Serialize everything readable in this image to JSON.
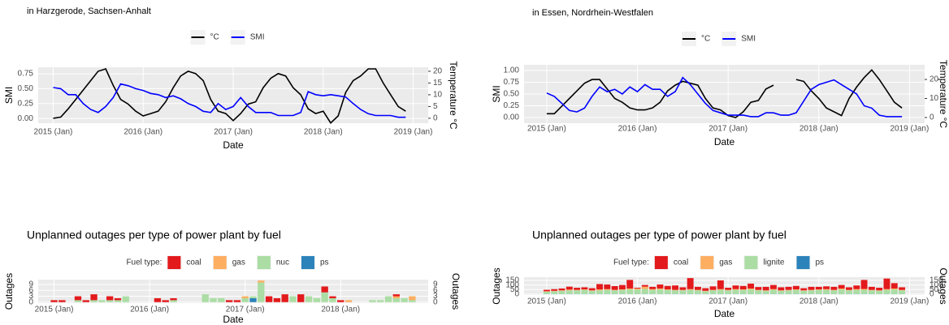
{
  "chart_data": [
    {
      "type": "line",
      "subtitle": "in Harzgerode, Sachsen-Anhalt",
      "x_label": "Date",
      "y_label": "SMI",
      "y2_label": "Temperature °C",
      "x": [
        "2015-01",
        "2015-02",
        "2015-03",
        "2015-04",
        "2015-05",
        "2015-06",
        "2015-07",
        "2015-08",
        "2015-09",
        "2015-10",
        "2015-11",
        "2015-12",
        "2016-01",
        "2016-02",
        "2016-03",
        "2016-04",
        "2016-05",
        "2016-06",
        "2016-07",
        "2016-08",
        "2016-09",
        "2016-10",
        "2016-11",
        "2016-12",
        "2017-01",
        "2017-02",
        "2017-03",
        "2017-04",
        "2017-05",
        "2017-06",
        "2017-07",
        "2017-08",
        "2017-09",
        "2017-10",
        "2017-11",
        "2017-12",
        "2018-01",
        "2018-02",
        "2018-03",
        "2018-04",
        "2018-05",
        "2018-06",
        "2018-07",
        "2018-08",
        "2018-09",
        "2018-10",
        "2018-11",
        "2018-12"
      ],
      "xlim": [
        "2014-11",
        "2019-03"
      ],
      "xticks": [
        {
          "value": "2015-01",
          "label": "2015 (Jan)"
        },
        {
          "value": "2016-01",
          "label": "2016 (Jan)"
        },
        {
          "value": "2017-01",
          "label": "2017 (Jan)"
        },
        {
          "value": "2018-01",
          "label": "2018 (Jan)"
        },
        {
          "value": "2019-01",
          "label": "2019 (Jan)"
        }
      ],
      "ylim": [
        -0.08,
        0.86
      ],
      "yticks": [
        {
          "value": 0,
          "label": "0.00"
        },
        {
          "value": 0.25,
          "label": "0.25"
        },
        {
          "value": 0.5,
          "label": "0.50"
        },
        {
          "value": 0.75,
          "label": "0.75"
        }
      ],
      "y2lim": [
        -2.1,
        21.7
      ],
      "y2ticks": [
        0,
        5,
        10,
        15,
        20
      ],
      "grid": true,
      "series": [
        {
          "name": "°C",
          "color": "#000000",
          "axis": "y2",
          "values": [
            0,
            0.5,
            4,
            8,
            12,
            16,
            20,
            21,
            14,
            8,
            6,
            3,
            1,
            2,
            3,
            7,
            13,
            18,
            20,
            19,
            16,
            8,
            3,
            2,
            -1,
            2,
            6,
            7,
            13,
            17,
            19,
            18,
            13,
            10,
            4,
            2,
            3,
            -2,
            1,
            11,
            16,
            18,
            21,
            21,
            15,
            10,
            5,
            3
          ]
        },
        {
          "name": "SMI",
          "color": "#0000ff",
          "values": [
            0.52,
            0.5,
            0.4,
            0.4,
            0.25,
            0.15,
            0.1,
            0.2,
            0.35,
            0.58,
            0.55,
            0.5,
            0.47,
            0.42,
            0.4,
            0.35,
            0.38,
            0.33,
            0.25,
            0.2,
            0.12,
            0.1,
            0.25,
            0.15,
            0.2,
            0.35,
            0.2,
            0.1,
            0.1,
            0.1,
            0.05,
            0.05,
            0.05,
            0.1,
            0.45,
            0.4,
            0.38,
            0.4,
            0.38,
            0.36,
            0.25,
            0.15,
            0.08,
            0.05,
            0.05,
            0.05,
            0.02,
            0.02
          ]
        }
      ]
    },
    {
      "type": "bar",
      "title": "Unplanned outages per type of power plant by fuel",
      "legend_title": "Fuel type:",
      "x_label": "Date",
      "y_label": "Outages",
      "x": [
        "2015-01",
        "2015-02",
        "2015-03",
        "2015-04",
        "2015-05",
        "2015-06",
        "2015-07",
        "2015-08",
        "2015-09",
        "2015-10",
        "2015-11",
        "2015-12",
        "2016-01",
        "2016-02",
        "2016-03",
        "2016-04",
        "2016-05",
        "2016-06",
        "2016-07",
        "2016-08",
        "2016-09",
        "2016-10",
        "2016-11",
        "2016-12",
        "2017-01",
        "2017-02",
        "2017-03",
        "2017-04",
        "2017-05",
        "2017-06",
        "2017-07",
        "2017-08",
        "2017-09",
        "2017-10",
        "2017-11",
        "2017-12",
        "2018-01",
        "2018-02",
        "2018-03",
        "2018-04",
        "2018-05",
        "2018-06",
        "2018-07",
        "2018-08",
        "2018-09",
        "2018-10"
      ],
      "xlim": [
        "2014-11",
        "2018-12"
      ],
      "xticks": [
        {
          "value": "2015-01",
          "label": "2015 (Jan)"
        },
        {
          "value": "2016-01",
          "label": "2016 (Jan)"
        },
        {
          "value": "2017-01",
          "label": "2017 (Jan)"
        },
        {
          "value": "2018-01",
          "label": "2018 (Jan)"
        }
      ],
      "ylim": [
        -0.5,
        11.5
      ],
      "yticks": [
        0,
        3,
        6,
        9
      ],
      "grid": true,
      "series": [
        {
          "name": "coal",
          "color": "#e31a1c",
          "values": [
            1,
            1,
            0,
            2,
            1,
            3,
            0,
            2,
            1,
            0,
            0,
            0,
            0,
            2,
            1,
            1,
            0,
            0,
            0,
            0,
            0,
            0,
            1,
            1,
            0,
            0,
            0,
            3,
            2,
            4,
            0,
            4,
            0,
            0,
            3,
            1,
            1,
            0,
            0,
            0,
            0,
            0,
            0,
            1,
            0,
            0
          ]
        },
        {
          "name": "gas",
          "color": "#fdae61",
          "values": [
            0,
            0,
            0,
            0,
            0,
            0,
            0,
            0,
            0,
            0,
            0,
            0,
            0,
            0,
            0,
            0,
            0,
            0,
            0,
            0,
            0,
            0,
            0,
            0,
            1,
            0,
            1,
            0,
            0,
            0,
            0,
            0,
            0,
            0,
            0,
            0,
            0,
            1,
            0,
            0,
            0,
            0,
            0,
            1,
            0,
            2
          ]
        },
        {
          "name": "nuc",
          "color": "#abdda4",
          "values": [
            0,
            0,
            0,
            1,
            0,
            1,
            1,
            1,
            1,
            3,
            0,
            0,
            0,
            0,
            0,
            1,
            0,
            0,
            0,
            4,
            2,
            2,
            0,
            0,
            2,
            1,
            10,
            0,
            0,
            0,
            3,
            0,
            3,
            2,
            5,
            2,
            0,
            0,
            0,
            0,
            1,
            1,
            3,
            2,
            2,
            1
          ]
        },
        {
          "name": "ps",
          "color": "#2b83ba",
          "values": [
            0,
            0,
            0,
            0,
            0,
            0,
            0,
            0,
            0,
            0,
            0,
            0,
            0,
            0,
            0,
            0,
            0,
            0,
            0,
            0,
            0,
            0,
            0,
            0,
            0,
            2,
            0,
            0,
            0,
            0,
            0,
            0,
            0,
            0,
            0,
            0,
            0,
            0,
            0,
            0,
            0,
            0,
            0,
            0,
            0,
            0
          ]
        }
      ]
    },
    {
      "type": "line",
      "subtitle": "in Essen, Nordrhein-Westfalen",
      "x_label": "Date",
      "y_label": "SMI",
      "y2_label": "Temperature °C",
      "x": [
        "2015-01",
        "2015-02",
        "2015-03",
        "2015-04",
        "2015-05",
        "2015-06",
        "2015-07",
        "2015-08",
        "2015-09",
        "2015-10",
        "2015-11",
        "2015-12",
        "2016-01",
        "2016-02",
        "2016-03",
        "2016-04",
        "2016-05",
        "2016-06",
        "2016-07",
        "2016-08",
        "2016-09",
        "2016-10",
        "2016-11",
        "2016-12",
        "2017-01",
        "2017-02",
        "2017-03",
        "2017-04",
        "2017-05",
        "2017-06",
        "2017-07",
        "2017-08",
        "2017-09",
        "2017-10",
        "2017-11",
        "2017-12",
        "2018-01",
        "2018-02",
        "2018-03",
        "2018-04",
        "2018-05",
        "2018-06",
        "2018-07",
        "2018-08",
        "2018-09",
        "2018-10",
        "2018-11",
        "2018-12"
      ],
      "xlim": [
        "2014-10",
        "2019-03"
      ],
      "xticks": [
        {
          "value": "2015-01",
          "label": "2015 (Jan)"
        },
        {
          "value": "2016-01",
          "label": "2016 (Jan)"
        },
        {
          "value": "2017-01",
          "label": "2017 (Jan)"
        },
        {
          "value": "2018-01",
          "label": "2018 (Jan)"
        },
        {
          "value": "2019-01",
          "label": "2019 (Jan)"
        }
      ],
      "ylim": [
        -0.12,
        1.12
      ],
      "yticks": [
        {
          "value": 0,
          "label": "0.00"
        },
        {
          "value": 0.25,
          "label": "0.25"
        },
        {
          "value": 0.5,
          "label": "0.50"
        },
        {
          "value": 0.75,
          "label": "0.75"
        },
        {
          "value": 1,
          "label": "1.00"
        }
      ],
      "y2lim": [
        -3,
        27.7
      ],
      "y2ticks": [
        0,
        10,
        20
      ],
      "grid": true,
      "series": [
        {
          "name": "°C",
          "color": "#000000",
          "axis": "y2",
          "values": [
            2,
            2,
            6,
            10,
            14,
            18,
            20,
            20,
            15,
            10,
            8,
            5,
            4,
            4,
            5,
            8,
            14,
            17,
            19,
            18,
            17,
            10,
            5,
            4,
            1,
            0,
            3,
            8,
            9,
            15,
            17,
            null,
            null,
            20,
            19,
            14,
            10,
            5,
            3,
            1,
            10,
            16,
            21,
            25,
            20,
            14,
            8,
            5
          ]
        },
        {
          "name": "SMI",
          "color": "#0000ff",
          "values": [
            0.52,
            0.45,
            0.3,
            0.15,
            0.12,
            0.2,
            0.45,
            0.65,
            0.55,
            0.6,
            0.5,
            0.65,
            0.55,
            0.7,
            0.6,
            0.6,
            0.45,
            0.55,
            0.85,
            0.7,
            0.5,
            0.3,
            0.15,
            0.1,
            0.05,
            0.05,
            0.05,
            0.02,
            0.02,
            0.1,
            0.1,
            0.05,
            0.05,
            0.1,
            0.35,
            0.6,
            0.7,
            0.75,
            0.8,
            0.7,
            0.6,
            0.5,
            0.25,
            0.2,
            0.05,
            0.02,
            0.02,
            0.02
          ]
        }
      ]
    },
    {
      "type": "bar",
      "title": "Unplanned outages per type of power plant by fuel",
      "legend_title": "Fuel type:",
      "x_label": "Date",
      "y_label": "Outages",
      "x": [
        "2015-01",
        "2015-02",
        "2015-03",
        "2015-04",
        "2015-05",
        "2015-06",
        "2015-07",
        "2015-08",
        "2015-09",
        "2015-10",
        "2015-11",
        "2015-12",
        "2016-01",
        "2016-02",
        "2016-03",
        "2016-04",
        "2016-05",
        "2016-06",
        "2016-07",
        "2016-08",
        "2016-09",
        "2016-10",
        "2016-11",
        "2016-12",
        "2017-01",
        "2017-02",
        "2017-03",
        "2017-04",
        "2017-05",
        "2017-06",
        "2017-07",
        "2017-08",
        "2017-09",
        "2017-10",
        "2017-11",
        "2017-12",
        "2018-01",
        "2018-02",
        "2018-03",
        "2018-04",
        "2018-05",
        "2018-06",
        "2018-07",
        "2018-08",
        "2018-09",
        "2018-10",
        "2018-11",
        "2018-12"
      ],
      "xlim": [
        "2014-10",
        "2019-03"
      ],
      "xticks": [
        {
          "value": "2015-01",
          "label": "2015 (Jan)"
        },
        {
          "value": "2016-01",
          "label": "2016 (Jan)"
        },
        {
          "value": "2017-01",
          "label": "2017 (Jan)"
        },
        {
          "value": "2018-01",
          "label": "2018 (Jan)"
        },
        {
          "value": "2019-01",
          "label": "2019 (Jan)"
        }
      ],
      "ylim": [
        -9,
        185
      ],
      "yticks": [
        0,
        50,
        100,
        150
      ],
      "grid": true,
      "series": [
        {
          "name": "coal",
          "color": "#e31a1c",
          "values": [
            16,
            18,
            20,
            32,
            23,
            23,
            23,
            58,
            50,
            41,
            48,
            93,
            8,
            18,
            25,
            43,
            38,
            48,
            28,
            120,
            33,
            28,
            38,
            95,
            23,
            40,
            38,
            53,
            31,
            38,
            45,
            33,
            33,
            38,
            23,
            33,
            28,
            30,
            33,
            38,
            28,
            40,
            98,
            33,
            28,
            115,
            58,
            28
          ]
        },
        {
          "name": "gas",
          "color": "#fdae61",
          "values": [
            5,
            5,
            5,
            8,
            5,
            5,
            5,
            10,
            8,
            5,
            5,
            10,
            10,
            25,
            8,
            10,
            5,
            5,
            5,
            8,
            5,
            5,
            5,
            8,
            5,
            8,
            5,
            10,
            5,
            5,
            8,
            5,
            5,
            5,
            5,
            5,
            5,
            8,
            5,
            10,
            5,
            8,
            10,
            5,
            5,
            8,
            10,
            5
          ]
        },
        {
          "name": "lignite",
          "color": "#abdda4",
          "values": [
            25,
            30,
            35,
            40,
            40,
            45,
            35,
            40,
            45,
            40,
            45,
            50,
            50,
            55,
            45,
            50,
            45,
            40,
            40,
            45,
            40,
            30,
            40,
            45,
            40,
            45,
            45,
            50,
            40,
            35,
            45,
            35,
            40,
            45,
            35,
            40,
            45,
            45,
            40,
            50,
            40,
            45,
            45,
            40,
            35,
            45,
            50,
            40
          ]
        },
        {
          "name": "ps",
          "color": "#2b83ba",
          "values": [
            2,
            2,
            2,
            2,
            2,
            2,
            2,
            2,
            2,
            2,
            2,
            2,
            2,
            2,
            2,
            2,
            2,
            2,
            2,
            2,
            2,
            2,
            2,
            2,
            2,
            2,
            2,
            2,
            2,
            2,
            2,
            2,
            2,
            2,
            2,
            2,
            2,
            2,
            2,
            2,
            2,
            2,
            2,
            2,
            2,
            2,
            2,
            2
          ]
        }
      ]
    }
  ]
}
